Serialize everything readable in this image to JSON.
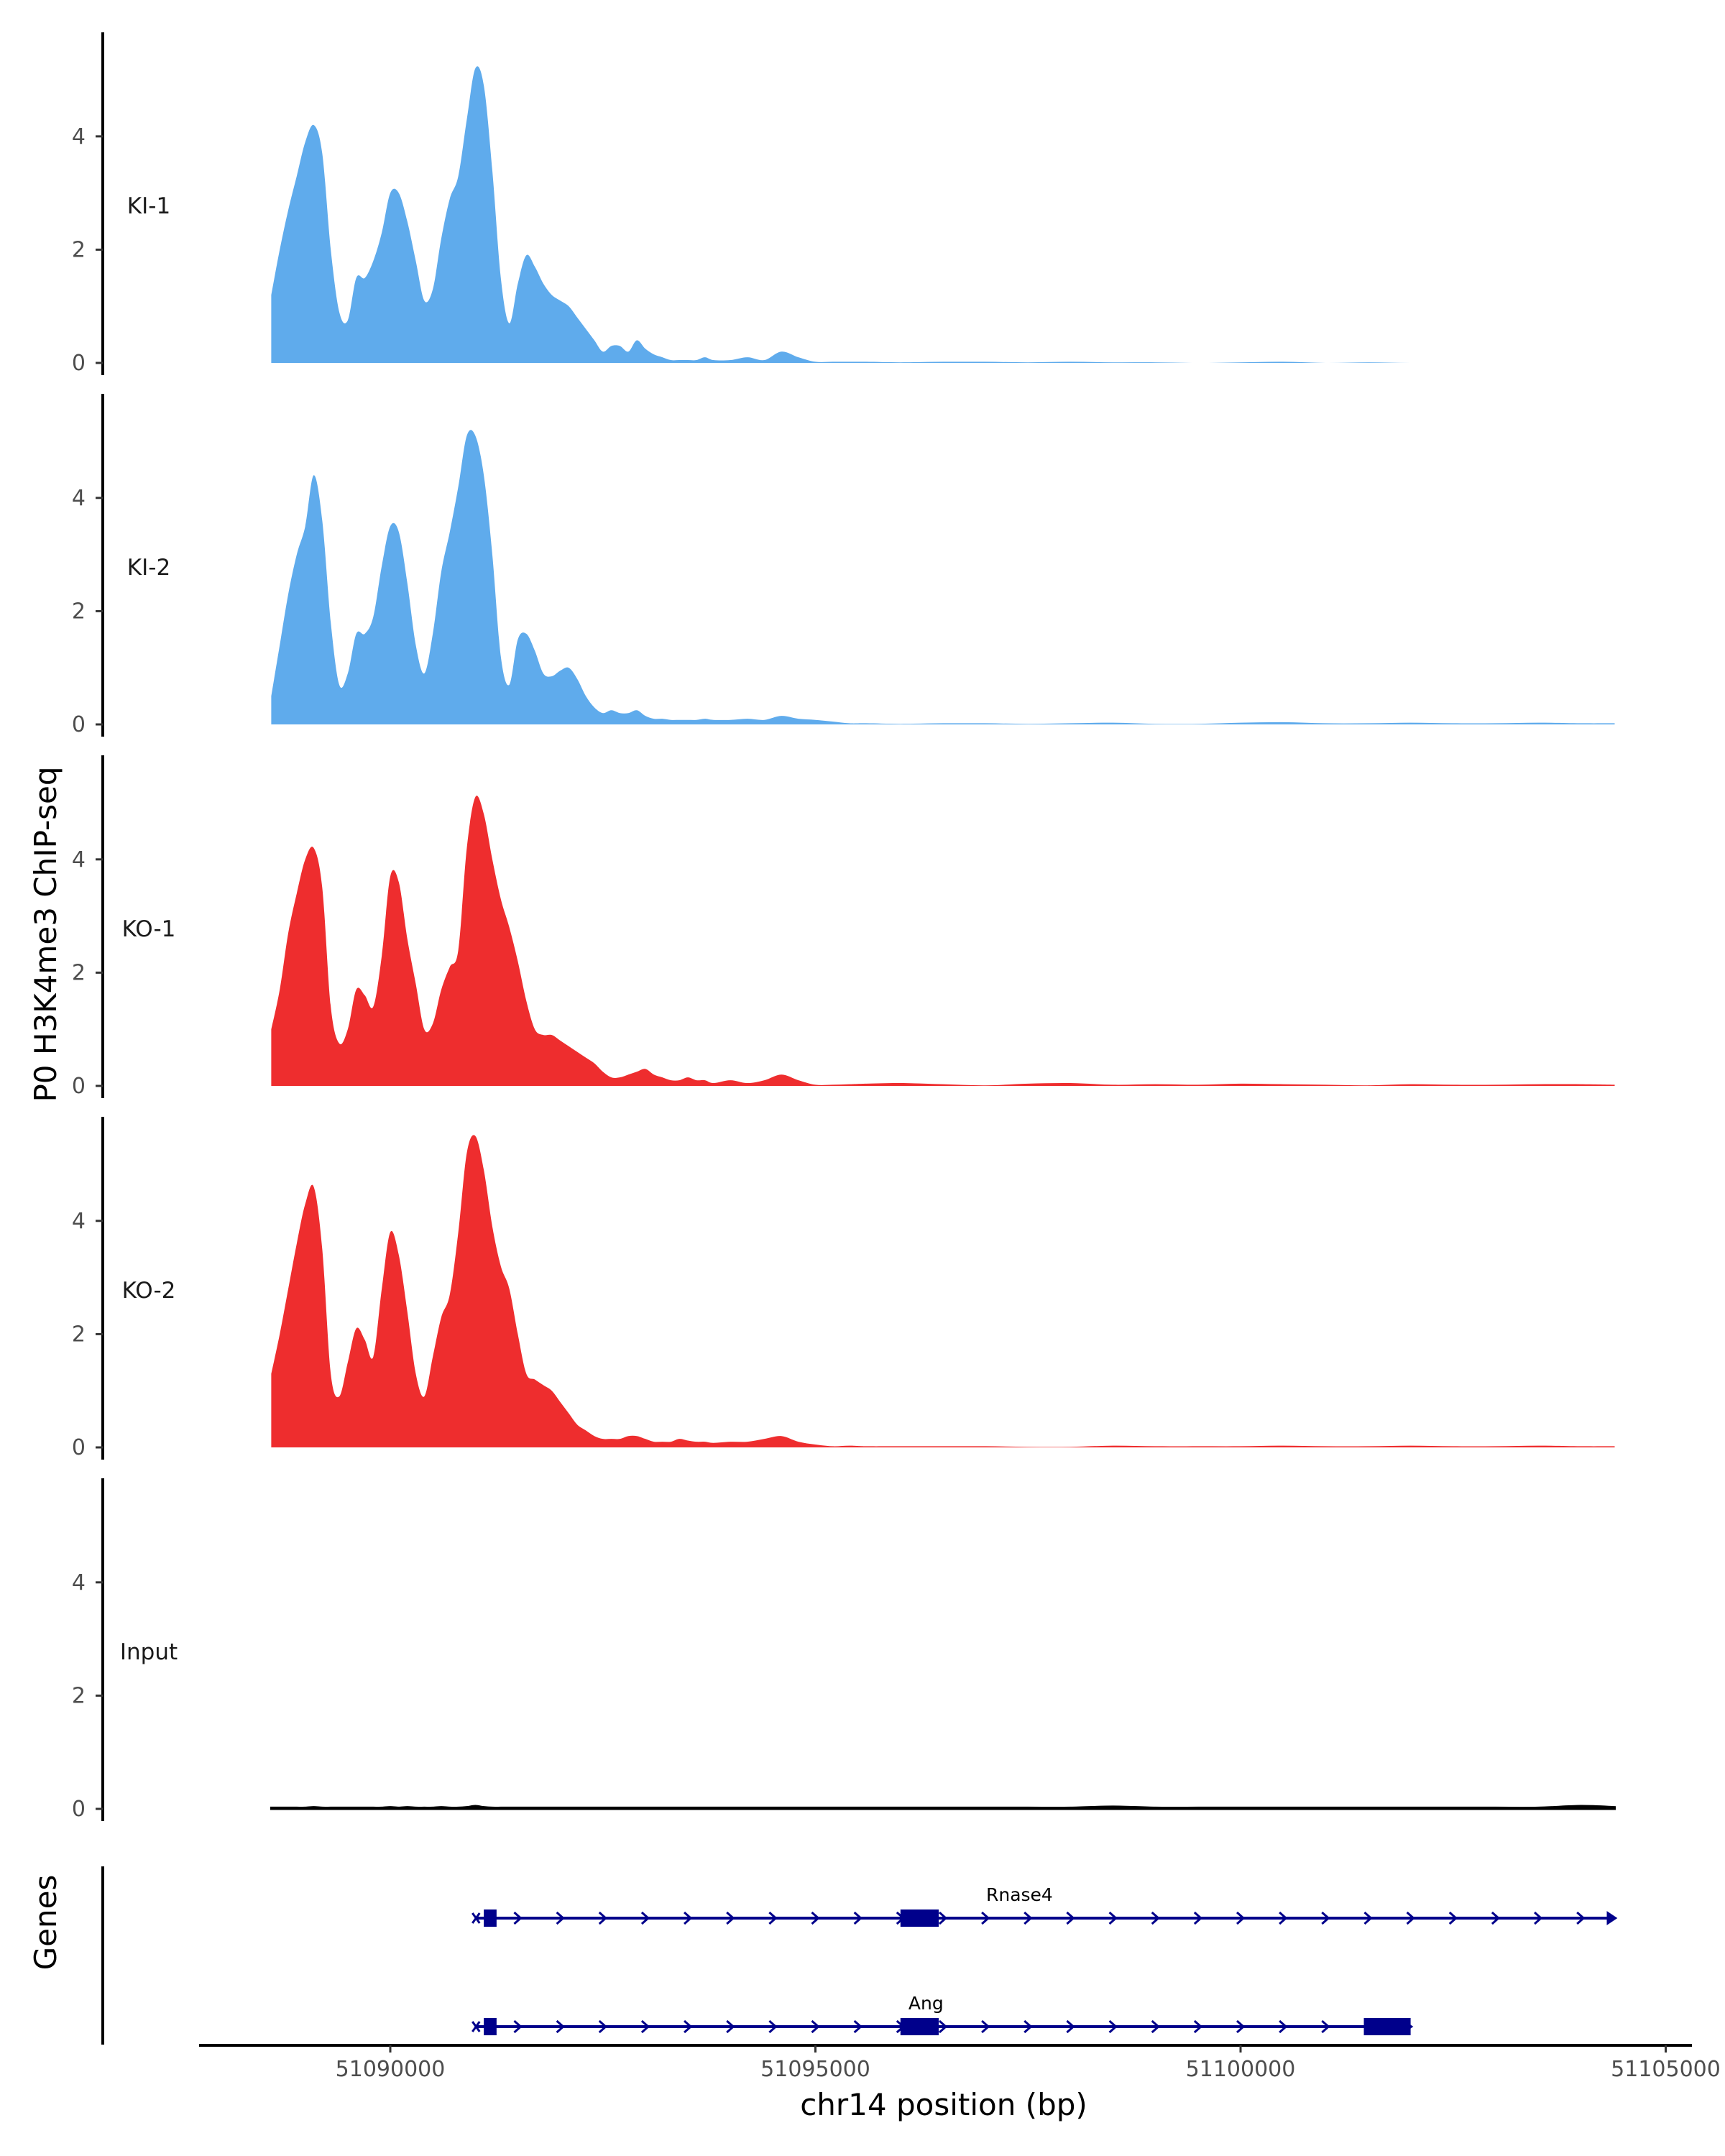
{
  "chart_data": {
    "type": "area",
    "ylabel": "P0 H3K4me3 ChIP-seq",
    "xlabel": "chr14 position (bp)",
    "genes_label": "Genes",
    "xlim": [
      51088000,
      51105000
    ],
    "ylim": [
      0,
      5.8
    ],
    "x_ticks": [
      51090000,
      51095000,
      51100000,
      51105000
    ],
    "x_tick_labels": [
      "51090000",
      "51095000",
      "51100000",
      "51105000"
    ],
    "y_ticks": [
      0,
      2,
      4
    ],
    "y_tick_labels": [
      "0",
      "2",
      "4"
    ],
    "x_positions": [
      51088600,
      51088700,
      51088800,
      51088900,
      51089000,
      51089100,
      51089200,
      51089300,
      51089400,
      51089500,
      51089600,
      51089700,
      51089800,
      51089900,
      51090000,
      51090100,
      51090200,
      51090300,
      51090400,
      51090500,
      51090600,
      51090700,
      51090800,
      51090900,
      51091000,
      51091100,
      51091200,
      51091300,
      51091400,
      51091500,
      51091600,
      51091700,
      51091800,
      51091900,
      51092000,
      51092100,
      51092200,
      51092300,
      51092400,
      51092500,
      51092600,
      51092700,
      51092800,
      51092900,
      51093000,
      51093100,
      51093200,
      51093300,
      51093400,
      51093500,
      51093600,
      51093700,
      51093800,
      51094000,
      51094200,
      51094400,
      51094600,
      51094800,
      51095000,
      51095200,
      51095400,
      51095600,
      51096000,
      51096500,
      51097000,
      51097500,
      51098000,
      51098500,
      51099000,
      51099500,
      51100000,
      51100500,
      51101000,
      51101500,
      51102000,
      51102500,
      51103000,
      51103500,
      51104000,
      51104400
    ],
    "series": [
      {
        "name": "KI-1",
        "color": "#5fabec",
        "values": [
          1.2,
          2.0,
          2.7,
          3.3,
          3.9,
          4.2,
          3.7,
          2.0,
          0.9,
          0.75,
          1.5,
          1.5,
          1.8,
          2.3,
          3.0,
          3.0,
          2.5,
          1.8,
          1.1,
          1.3,
          2.2,
          2.9,
          3.3,
          4.3,
          5.2,
          4.9,
          3.4,
          1.5,
          0.7,
          1.4,
          1.9,
          1.7,
          1.4,
          1.2,
          1.1,
          1.0,
          0.8,
          0.6,
          0.4,
          0.2,
          0.3,
          0.3,
          0.2,
          0.4,
          0.25,
          0.15,
          0.1,
          0.05,
          0.05,
          0.05,
          0.05,
          0.1,
          0.05,
          0.05,
          0.1,
          0.05,
          0.2,
          0.1,
          0.02,
          0.02,
          0.02,
          0.02,
          0.01,
          0.02,
          0.02,
          0.01,
          0.02,
          0.01,
          0.01,
          0.0,
          0.01,
          0.02,
          0.0,
          0.01,
          0.0,
          0.0,
          0.0,
          0.0,
          0.0,
          0.0
        ]
      },
      {
        "name": "KI-2",
        "color": "#5fabec",
        "values": [
          0.5,
          1.4,
          2.3,
          3.0,
          3.5,
          4.4,
          3.6,
          1.8,
          0.7,
          0.9,
          1.6,
          1.6,
          1.9,
          2.8,
          3.5,
          3.4,
          2.5,
          1.4,
          0.9,
          1.6,
          2.7,
          3.4,
          4.2,
          5.1,
          5.1,
          4.4,
          3.0,
          1.2,
          0.7,
          1.5,
          1.6,
          1.3,
          0.9,
          0.85,
          0.95,
          1.0,
          0.8,
          0.5,
          0.3,
          0.2,
          0.25,
          0.2,
          0.2,
          0.25,
          0.15,
          0.1,
          0.1,
          0.08,
          0.08,
          0.08,
          0.08,
          0.1,
          0.08,
          0.08,
          0.1,
          0.08,
          0.15,
          0.1,
          0.08,
          0.05,
          0.02,
          0.02,
          0.01,
          0.02,
          0.02,
          0.01,
          0.02,
          0.03,
          0.01,
          0.01,
          0.03,
          0.04,
          0.02,
          0.02,
          0.03,
          0.02,
          0.02,
          0.03,
          0.02,
          0.02
        ]
      },
      {
        "name": "KO-1",
        "color": "#ee2d2e",
        "values": [
          1.0,
          1.7,
          2.7,
          3.4,
          4.0,
          4.2,
          3.5,
          1.4,
          0.75,
          1.0,
          1.7,
          1.6,
          1.4,
          2.3,
          3.7,
          3.6,
          2.6,
          1.8,
          1.0,
          1.1,
          1.7,
          2.1,
          2.4,
          4.2,
          5.1,
          4.8,
          4.0,
          3.3,
          2.8,
          2.2,
          1.5,
          1.0,
          0.9,
          0.9,
          0.8,
          0.7,
          0.6,
          0.5,
          0.4,
          0.25,
          0.15,
          0.15,
          0.2,
          0.25,
          0.3,
          0.2,
          0.15,
          0.1,
          0.1,
          0.15,
          0.1,
          0.1,
          0.05,
          0.1,
          0.05,
          0.1,
          0.2,
          0.1,
          0.02,
          0.02,
          0.03,
          0.04,
          0.05,
          0.03,
          0.01,
          0.04,
          0.05,
          0.02,
          0.03,
          0.02,
          0.04,
          0.03,
          0.02,
          0.01,
          0.03,
          0.02,
          0.02,
          0.03,
          0.03,
          0.02
        ]
      },
      {
        "name": "KO-2",
        "color": "#ee2d2e",
        "values": [
          1.3,
          2.0,
          2.8,
          3.6,
          4.3,
          4.6,
          3.5,
          1.3,
          0.9,
          1.5,
          2.1,
          1.9,
          1.6,
          2.8,
          3.8,
          3.4,
          2.4,
          1.3,
          0.9,
          1.6,
          2.3,
          2.7,
          3.8,
          5.2,
          5.5,
          4.9,
          3.9,
          3.2,
          2.8,
          2.0,
          1.3,
          1.2,
          1.1,
          1.0,
          0.8,
          0.6,
          0.4,
          0.3,
          0.2,
          0.15,
          0.15,
          0.15,
          0.2,
          0.2,
          0.15,
          0.1,
          0.1,
          0.1,
          0.15,
          0.12,
          0.1,
          0.1,
          0.08,
          0.1,
          0.1,
          0.15,
          0.2,
          0.1,
          0.05,
          0.02,
          0.03,
          0.02,
          0.02,
          0.02,
          0.02,
          0.01,
          0.01,
          0.03,
          0.02,
          0.02,
          0.02,
          0.03,
          0.02,
          0.02,
          0.03,
          0.02,
          0.02,
          0.03,
          0.02,
          0.02
        ]
      },
      {
        "name": "Input",
        "color": "#000000",
        "values": [
          0.02,
          0.02,
          0.02,
          0.02,
          0.02,
          0.03,
          0.02,
          0.02,
          0.02,
          0.02,
          0.02,
          0.02,
          0.02,
          0.02,
          0.03,
          0.02,
          0.03,
          0.02,
          0.02,
          0.02,
          0.03,
          0.02,
          0.02,
          0.03,
          0.05,
          0.03,
          0.02,
          0.02,
          0.02,
          0.02,
          0.02,
          0.02,
          0.02,
          0.02,
          0.02,
          0.02,
          0.02,
          0.02,
          0.02,
          0.02,
          0.02,
          0.02,
          0.02,
          0.02,
          0.02,
          0.02,
          0.02,
          0.02,
          0.02,
          0.02,
          0.02,
          0.02,
          0.02,
          0.02,
          0.02,
          0.02,
          0.02,
          0.02,
          0.02,
          0.02,
          0.02,
          0.02,
          0.02,
          0.02,
          0.02,
          0.02,
          0.02,
          0.04,
          0.02,
          0.02,
          0.02,
          0.02,
          0.02,
          0.02,
          0.02,
          0.02,
          0.02,
          0.02,
          0.05,
          0.03
        ]
      }
    ],
    "genes": [
      {
        "name": "Rnase4",
        "start": 51091000,
        "end": 51104400,
        "label_at": 51097400,
        "strand": "+",
        "exons": [
          [
            51091100,
            51091250
          ],
          [
            51096000,
            51096450
          ]
        ]
      },
      {
        "name": "Ang",
        "start": 51091000,
        "end": 51102000,
        "label_at": 51096300,
        "strand": "+",
        "exons": [
          [
            51091100,
            51091250
          ],
          [
            51096000,
            51096450
          ],
          [
            51101450,
            51102000
          ]
        ]
      }
    ],
    "gene_color": "#00008b"
  }
}
